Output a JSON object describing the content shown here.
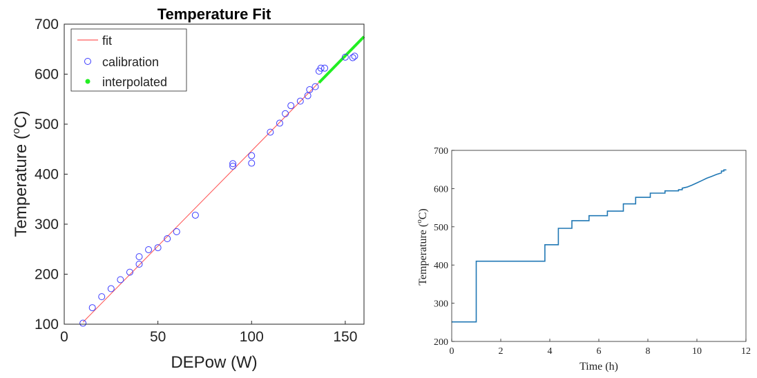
{
  "chart_data": [
    {
      "type": "scatter",
      "title": "Temperature Fit",
      "xlabel": "DEPow (W)",
      "ylabel_main": "Temperature (",
      "ylabel_sup": "o",
      "ylabel_tail": "C)",
      "xlim": [
        0,
        160
      ],
      "ylim": [
        100,
        700
      ],
      "xticks": [
        0,
        50,
        100,
        150
      ],
      "yticks": [
        100,
        200,
        300,
        400,
        500,
        600,
        700
      ],
      "grid": false,
      "legend_position": "top-left",
      "colors": {
        "fit": "#ff5a5a",
        "calibration": "#3b3bff",
        "interpolated": "#22ee22"
      },
      "series": [
        {
          "name": "fit",
          "style": "line",
          "x": [
            10,
            160
          ],
          "y": [
            104,
            675
          ]
        },
        {
          "name": "calibration",
          "style": "marker-open-circle",
          "x": [
            10,
            15,
            20,
            25,
            30,
            35,
            40,
            40,
            45,
            50,
            55,
            60,
            70,
            90,
            90,
            100,
            100,
            110,
            115,
            118,
            121,
            126,
            130,
            131,
            134,
            136,
            137,
            139,
            150,
            154,
            155
          ],
          "y": [
            102,
            133,
            155,
            171,
            189,
            204,
            220,
            235,
            249,
            253,
            271,
            285,
            318,
            416,
            421,
            437,
            422,
            484,
            502,
            521,
            537,
            546,
            557,
            569,
            575,
            606,
            612,
            612,
            634,
            633,
            636
          ]
        },
        {
          "name": "interpolated",
          "style": "thick-line",
          "x": [
            136,
            160
          ],
          "y": [
            583,
            675
          ]
        }
      ]
    },
    {
      "type": "line",
      "title": "",
      "xlabel": "Time (h)",
      "ylabel_main": "Temperature (",
      "ylabel_sup": "o",
      "ylabel_tail": "C)",
      "xlim": [
        0,
        12
      ],
      "ylim": [
        200,
        700
      ],
      "xticks": [
        0,
        2,
        4,
        6,
        8,
        10,
        12
      ],
      "yticks": [
        200,
        300,
        400,
        500,
        600,
        700
      ],
      "grid": false,
      "colors": {
        "line": "#1f77b4"
      },
      "series": [
        {
          "step_points": [
            [
              0,
              251
            ],
            [
              1.0,
              251
            ],
            [
              1.0,
              410
            ],
            [
              3.8,
              410
            ],
            [
              3.8,
              453
            ],
            [
              4.35,
              453
            ],
            [
              4.35,
              496
            ],
            [
              4.9,
              496
            ],
            [
              4.9,
              516
            ],
            [
              5.6,
              516
            ],
            [
              5.6,
              529
            ],
            [
              6.35,
              529
            ],
            [
              6.35,
              541
            ],
            [
              7.0,
              541
            ],
            [
              7.0,
              560
            ],
            [
              7.5,
              560
            ],
            [
              7.5,
              577
            ],
            [
              8.1,
              577
            ],
            [
              8.1,
              588
            ],
            [
              8.7,
              588
            ],
            [
              8.7,
              594
            ],
            [
              9.25,
              594
            ],
            [
              9.25,
              597
            ],
            [
              9.4,
              597
            ],
            [
              9.4,
              601
            ],
            [
              9.6,
              604
            ],
            [
              9.8,
              609
            ],
            [
              10.0,
              615
            ],
            [
              10.2,
              621
            ],
            [
              10.4,
              627
            ],
            [
              10.6,
              632
            ],
            [
              10.8,
              637
            ],
            [
              11.0,
              641
            ],
            [
              11.0,
              646
            ],
            [
              11.1,
              646
            ],
            [
              11.1,
              649
            ],
            [
              11.2,
              649
            ]
          ]
        }
      ]
    }
  ]
}
